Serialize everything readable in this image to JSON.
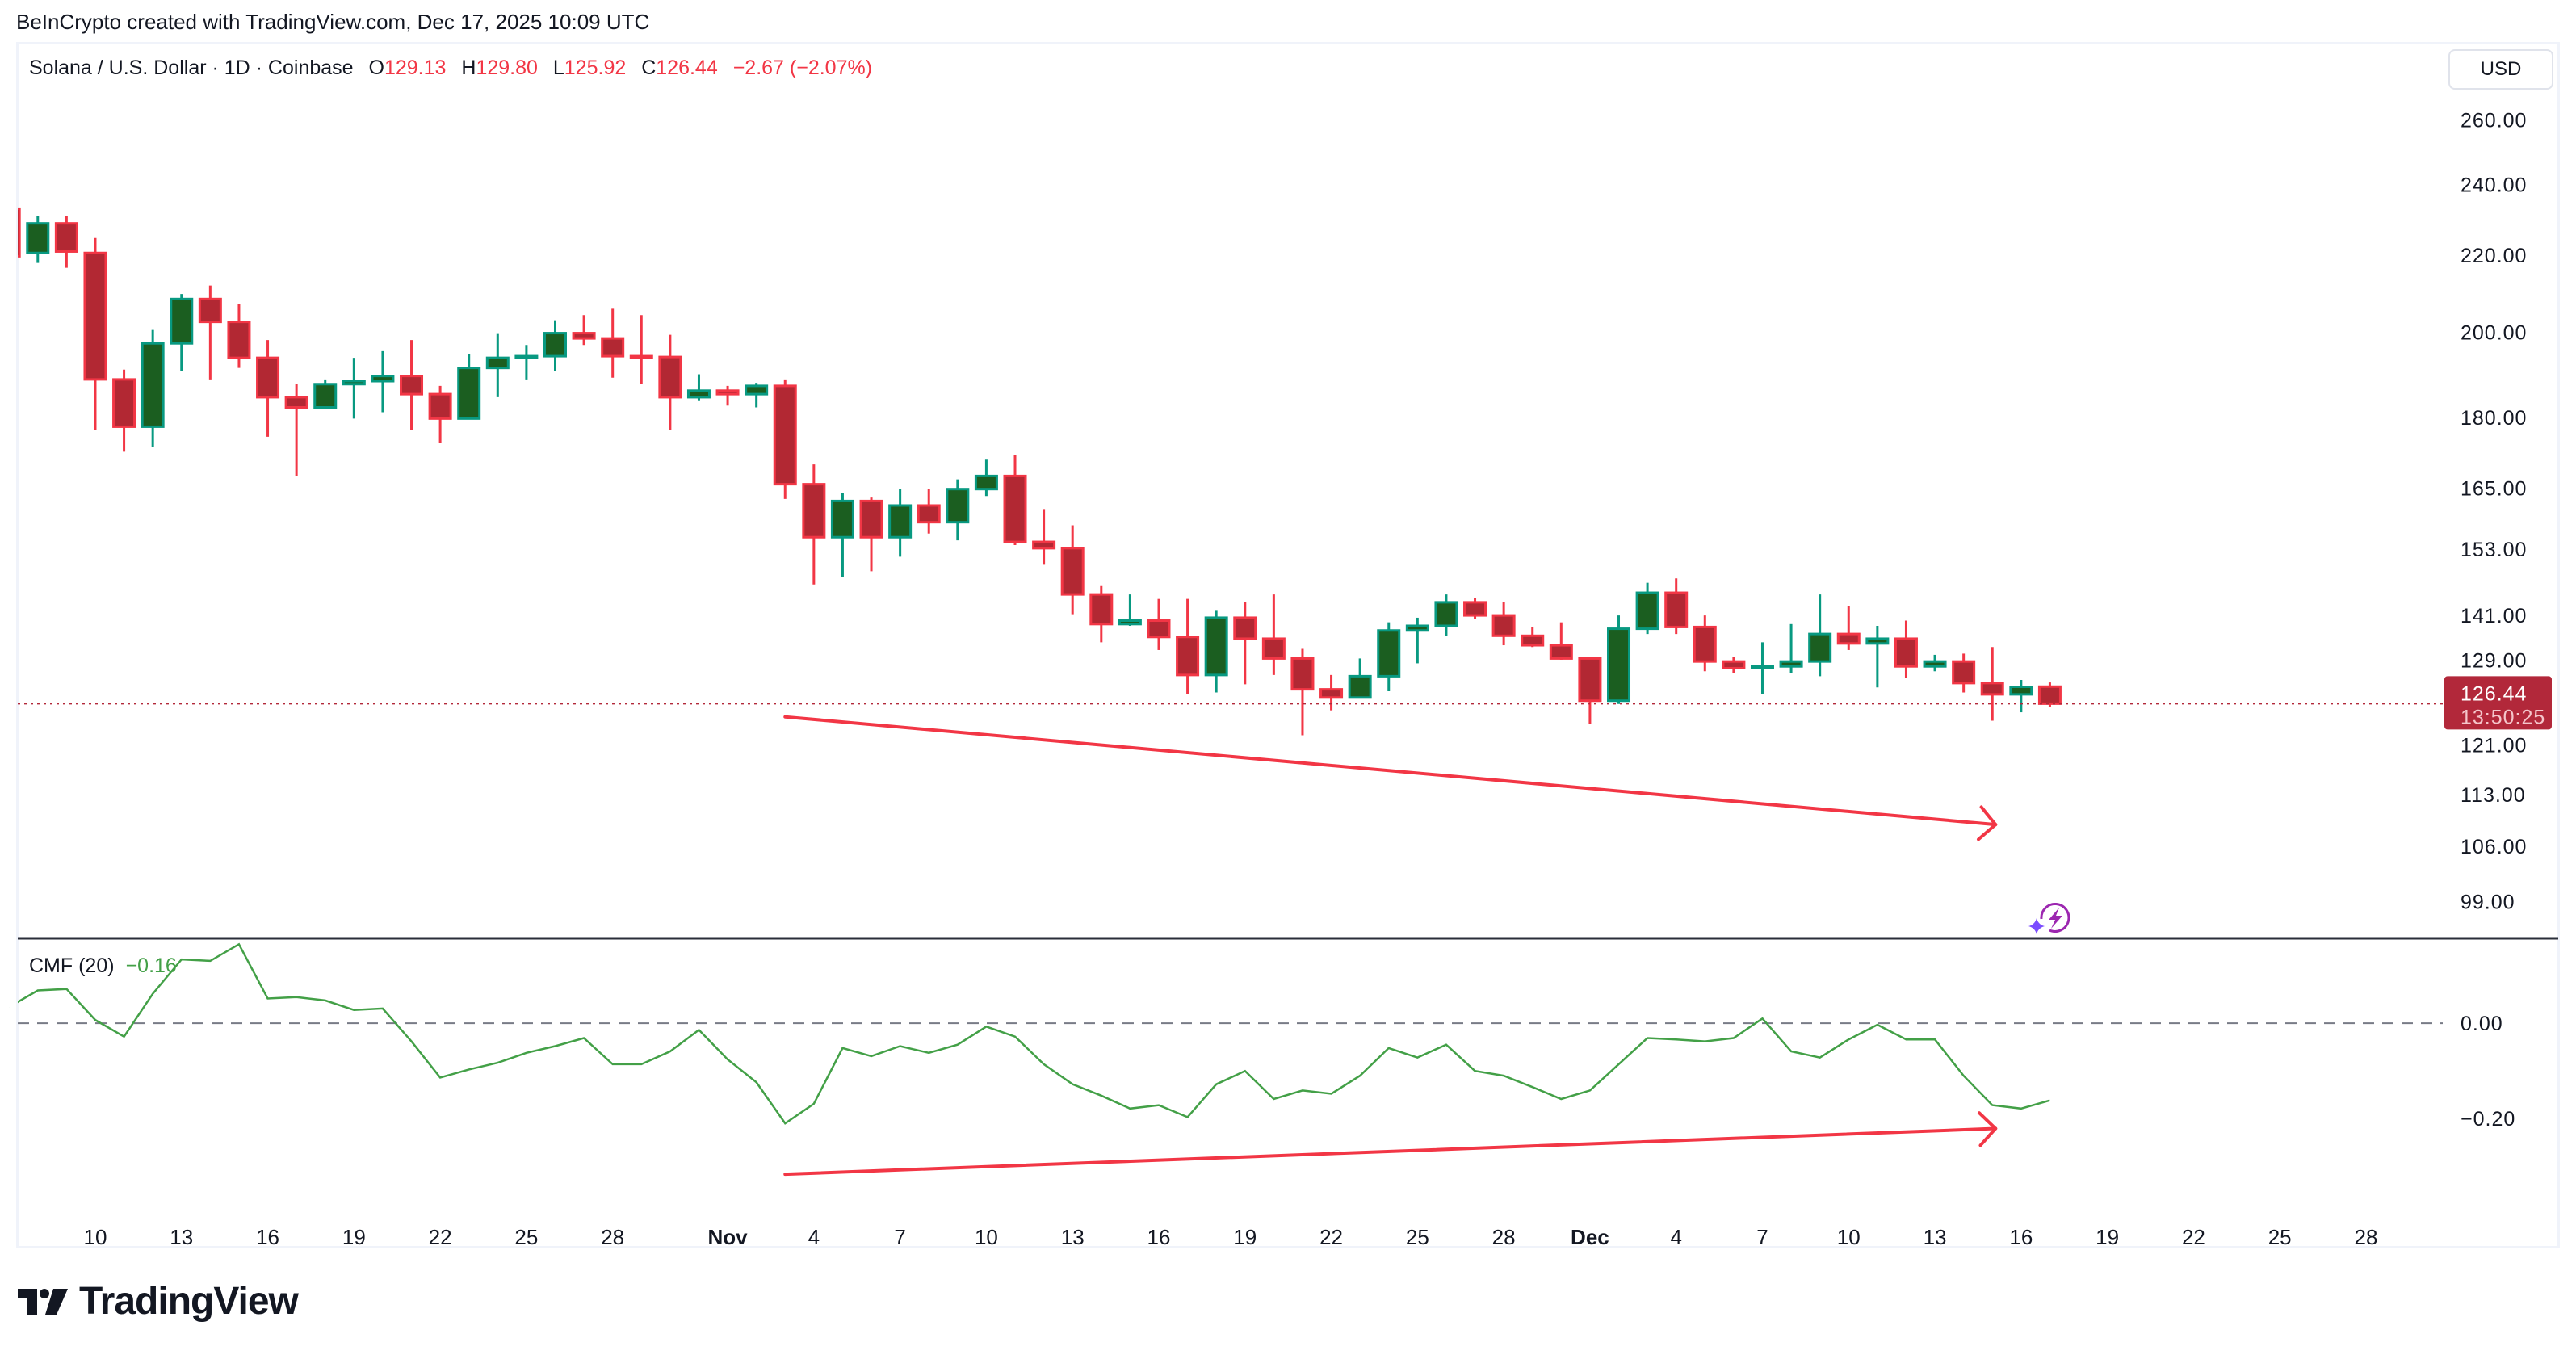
{
  "credit": "BeInCrypto created with TradingView.com, Dec 17, 2025 10:09 UTC",
  "legend": {
    "symbol": "Solana / U.S. Dollar · 1D · Coinbase",
    "o_label": "O",
    "o": "129.13",
    "h_label": "H",
    "h": "129.80",
    "l_label": "L",
    "l": "125.92",
    "c_label": "C",
    "c": "126.44",
    "change": "−2.67 (−2.07%)"
  },
  "currency_button": "USD",
  "last_price": {
    "value": "126.44",
    "countdown": "13:50:25",
    "color": "#b2283a"
  },
  "cmf_legend": {
    "name": "CMF (20)",
    "value": "−0.16"
  },
  "brand": "TradingView",
  "colors": {
    "up": "#089981",
    "up_body": "#1b5e20",
    "down": "#f23645",
    "down_body": "#b22833",
    "cmf": "#43a047",
    "annotation": "#f23645",
    "bolt": "#9c27b0"
  },
  "chart_data": [
    {
      "type": "candlestick",
      "title": "Solana / U.S. Dollar · 1D · Coinbase",
      "y_scale": "log",
      "ylim": [
        95,
        275
      ],
      "y_ticks": [
        "260.00",
        "240.00",
        "220.00",
        "200.00",
        "180.00",
        "165.00",
        "153.00",
        "141.00",
        "129.00",
        "121.00",
        "113.00",
        "106.00",
        "99.00"
      ],
      "y_tick_values": [
        260,
        240,
        220,
        200,
        180,
        165,
        153,
        141,
        129,
        121,
        113,
        106,
        99
      ],
      "x_ticks": [
        {
          "label": "10",
          "date": "2025-10-10"
        },
        {
          "label": "13",
          "date": "2025-10-13"
        },
        {
          "label": "16",
          "date": "2025-10-16"
        },
        {
          "label": "19",
          "date": "2025-10-19"
        },
        {
          "label": "22",
          "date": "2025-10-22"
        },
        {
          "label": "25",
          "date": "2025-10-25"
        },
        {
          "label": "28",
          "date": "2025-10-28"
        },
        {
          "label": "Nov",
          "date": "2025-11-01"
        },
        {
          "label": "4",
          "date": "2025-11-04"
        },
        {
          "label": "7",
          "date": "2025-11-07"
        },
        {
          "label": "10",
          "date": "2025-11-10"
        },
        {
          "label": "13",
          "date": "2025-11-13"
        },
        {
          "label": "16",
          "date": "2025-11-16"
        },
        {
          "label": "19",
          "date": "2025-11-19"
        },
        {
          "label": "22",
          "date": "2025-11-22"
        },
        {
          "label": "25",
          "date": "2025-11-25"
        },
        {
          "label": "28",
          "date": "2025-11-28"
        },
        {
          "label": "Dec",
          "date": "2025-12-01"
        },
        {
          "label": "4",
          "date": "2025-12-04"
        },
        {
          "label": "7",
          "date": "2025-12-07"
        },
        {
          "label": "10",
          "date": "2025-12-10"
        },
        {
          "label": "13",
          "date": "2025-12-13"
        },
        {
          "label": "16",
          "date": "2025-12-16"
        },
        {
          "label": "19",
          "date": "2025-12-19"
        },
        {
          "label": "22",
          "date": "2025-12-22"
        },
        {
          "label": "25",
          "date": "2025-12-25"
        },
        {
          "label": "28",
          "date": "2025-12-28"
        }
      ],
      "start_date": "2025-10-07",
      "ohlc": [
        [
          233,
          233,
          219,
          219.7
        ],
        [
          220.6,
          230.8,
          217.9,
          228.8
        ],
        [
          228.8,
          230.8,
          216.6,
          221.0
        ],
        [
          220.6,
          224.7,
          177.3,
          188.7
        ],
        [
          188.7,
          191.0,
          172.6,
          178.0
        ],
        [
          178.0,
          200.6,
          173.7,
          197.3
        ],
        [
          197.3,
          209.7,
          190.6,
          208.4
        ],
        [
          208.4,
          211.9,
          188.7,
          202.6
        ],
        [
          202.6,
          207.2,
          191.4,
          193.8
        ],
        [
          193.8,
          198.1,
          175.8,
          184.6
        ],
        [
          184.6,
          187.6,
          167.5,
          182.3
        ],
        [
          182.3,
          188.7,
          182.3,
          187.6
        ],
        [
          187.6,
          193.8,
          179.8,
          188.3
        ],
        [
          188.3,
          195.4,
          181.2,
          189.5
        ],
        [
          189.5,
          198.1,
          177.3,
          185.3
        ],
        [
          185.3,
          187.2,
          174.4,
          179.8
        ],
        [
          179.8,
          194.6,
          179.8,
          191.4
        ],
        [
          191.4,
          199.8,
          184.6,
          193.8
        ],
        [
          193.8,
          196.9,
          188.7,
          194.2
        ],
        [
          194.2,
          203.0,
          190.6,
          199.8
        ],
        [
          199.8,
          204.3,
          196.9,
          198.5
        ],
        [
          198.5,
          205.9,
          189.1,
          194.2
        ],
        [
          194.2,
          204.3,
          187.6,
          194.0
        ],
        [
          194.0,
          199.4,
          177.3,
          184.6
        ],
        [
          184.6,
          189.9,
          183.9,
          186.1
        ],
        [
          186.1,
          187.2,
          182.7,
          185.3
        ],
        [
          185.3,
          187.9,
          182.3,
          187.2
        ],
        [
          187.2,
          188.7,
          162.8,
          165.8
        ],
        [
          165.8,
          169.9,
          146.5,
          155.3
        ],
        [
          155.3,
          164.1,
          147.8,
          162.4
        ],
        [
          162.4,
          163.1,
          148.9,
          155.3
        ],
        [
          155.3,
          164.8,
          151.6,
          161.5
        ],
        [
          161.5,
          164.8,
          156.0,
          158.2
        ],
        [
          158.2,
          166.8,
          154.7,
          164.8
        ],
        [
          164.8,
          170.9,
          163.4,
          167.5
        ],
        [
          167.5,
          171.9,
          153.8,
          154.4
        ],
        [
          154.4,
          160.8,
          150.1,
          153.2
        ],
        [
          153.2,
          157.6,
          141.2,
          144.7
        ],
        [
          144.7,
          146.2,
          136.4,
          139.5
        ],
        [
          139.5,
          144.7,
          139.2,
          140.1
        ],
        [
          140.1,
          143.9,
          135.1,
          137.3
        ],
        [
          137.3,
          143.9,
          127.9,
          131.0
        ],
        [
          131.0,
          141.8,
          128.2,
          140.6
        ],
        [
          140.6,
          143.3,
          129.5,
          137.0
        ],
        [
          137.0,
          144.7,
          131.0,
          133.7
        ],
        [
          133.7,
          135.3,
          121.6,
          128.7
        ],
        [
          128.7,
          131.0,
          125.4,
          127.4
        ],
        [
          127.4,
          133.7,
          127.4,
          130.8
        ],
        [
          130.8,
          139.8,
          128.4,
          138.4
        ],
        [
          138.4,
          140.6,
          132.9,
          139.2
        ],
        [
          139.2,
          144.7,
          137.5,
          143.3
        ],
        [
          143.3,
          144.1,
          140.4,
          141.0
        ],
        [
          141.0,
          143.3,
          135.9,
          137.5
        ],
        [
          137.5,
          139.0,
          135.6,
          135.9
        ],
        [
          135.9,
          139.8,
          133.5,
          133.7
        ],
        [
          133.7,
          134.0,
          123.3,
          126.9
        ],
        [
          126.9,
          141.0,
          126.4,
          138.7
        ],
        [
          138.7,
          146.8,
          137.8,
          145.0
        ],
        [
          145.0,
          147.6,
          137.8,
          139.0
        ],
        [
          139.0,
          141.0,
          131.6,
          133.2
        ],
        [
          133.2,
          134.0,
          131.3,
          132.1
        ],
        [
          132.1,
          136.4,
          127.9,
          132.4
        ],
        [
          132.4,
          139.5,
          131.3,
          133.2
        ],
        [
          133.2,
          144.7,
          130.8,
          137.8
        ],
        [
          137.8,
          142.7,
          135.1,
          136.2
        ],
        [
          136.2,
          139.2,
          129.0,
          137.0
        ],
        [
          137.0,
          140.1,
          130.5,
          132.4
        ],
        [
          132.4,
          134.3,
          131.6,
          133.2
        ],
        [
          133.2,
          134.5,
          128.2,
          129.7
        ],
        [
          129.7,
          135.6,
          123.8,
          127.9
        ],
        [
          127.9,
          130.2,
          125.1,
          129.1
        ],
        [
          129.13,
          129.8,
          125.92,
          126.44
        ]
      ],
      "last_price": 126.44,
      "annotation": {
        "type": "trend-arrow",
        "from": {
          "date": "2025-11-03",
          "price": 124.4
        },
        "to": {
          "date": "2025-12-15",
          "price": 108.9
        }
      }
    },
    {
      "type": "line",
      "title": "CMF (20)",
      "ylim": [
        -0.403,
        0.176
      ],
      "y_ticks": [
        "0.00",
        "−0.20"
      ],
      "y_tick_values": [
        0,
        -0.2
      ],
      "reference_line": 0,
      "start_date": "2025-10-07",
      "values": [
        0.034,
        0.069,
        0.072,
        0.007,
        -0.028,
        0.062,
        0.134,
        0.131,
        0.166,
        0.052,
        0.055,
        0.048,
        0.028,
        0.031,
        -0.038,
        -0.114,
        -0.097,
        -0.083,
        -0.062,
        -0.048,
        -0.031,
        -0.086,
        -0.086,
        -0.059,
        -0.014,
        -0.076,
        -0.124,
        -0.21,
        -0.169,
        -0.052,
        -0.069,
        -0.048,
        -0.062,
        -0.045,
        -0.007,
        -0.028,
        -0.086,
        -0.128,
        -0.152,
        -0.179,
        -0.172,
        -0.197,
        -0.128,
        -0.1,
        -0.159,
        -0.141,
        -0.148,
        -0.11,
        -0.052,
        -0.072,
        -0.045,
        -0.1,
        -0.11,
        -0.134,
        -0.159,
        -0.141,
        -0.086,
        -0.031,
        -0.034,
        -0.038,
        -0.031,
        0.01,
        -0.059,
        -0.072,
        -0.034,
        -0.003,
        -0.034,
        -0.034,
        -0.11,
        -0.172,
        -0.179,
        -0.162
      ],
      "annotation": {
        "type": "trend-arrow",
        "from": {
          "date": "2025-11-03",
          "value": -0.317
        },
        "to": {
          "date": "2025-12-15",
          "value": -0.221
        }
      }
    }
  ]
}
